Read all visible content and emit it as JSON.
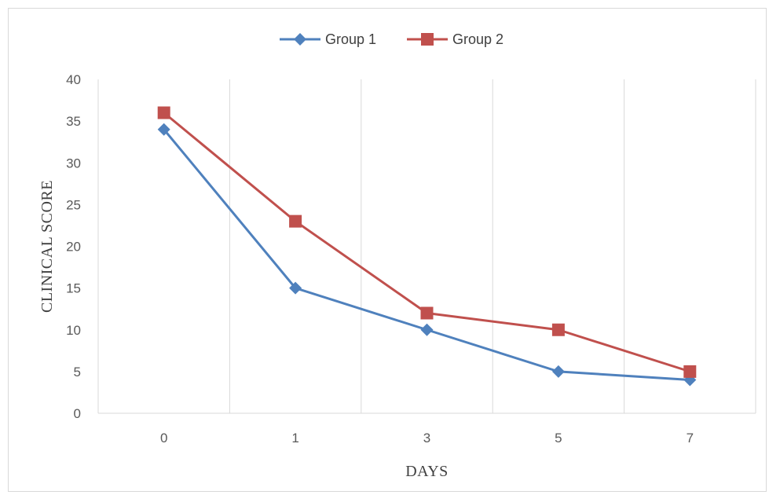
{
  "chart_data": {
    "type": "line",
    "categories": [
      "0",
      "1",
      "3",
      "5",
      "7"
    ],
    "series": [
      {
        "name": "Group 1",
        "values": [
          34,
          15,
          10,
          5,
          4
        ],
        "color": "#4f81bd",
        "marker": "diamond"
      },
      {
        "name": "Group 2",
        "values": [
          36,
          23,
          12,
          10,
          5
        ],
        "color": "#c0504d",
        "marker": "square"
      }
    ],
    "title": "",
    "xlabel": "DAYS",
    "ylabel": "CLINICAL SCORE",
    "ylim": [
      0,
      40
    ],
    "yticks": [
      "0",
      "5",
      "10",
      "15",
      "20",
      "25",
      "30",
      "35",
      "40"
    ],
    "grid": "vertical",
    "legend": "top-center"
  }
}
